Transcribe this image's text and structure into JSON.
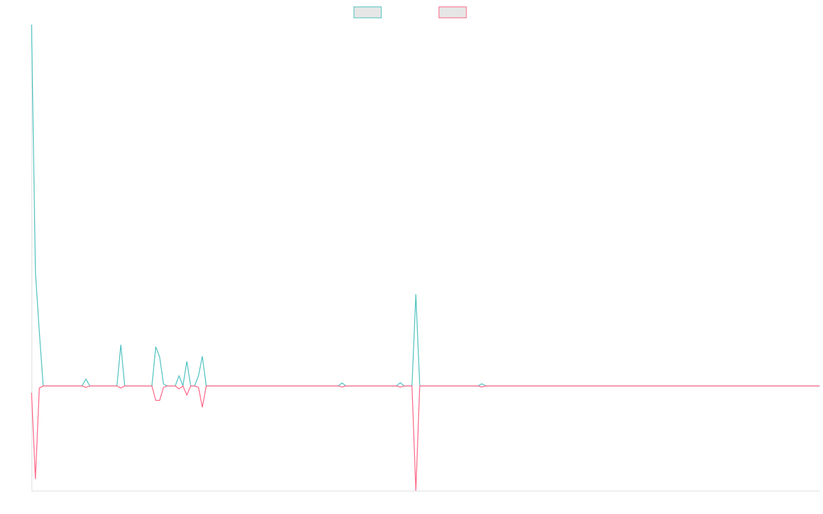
{
  "chart_data": {
    "type": "line",
    "legend": "top",
    "ylim": [
      -29,
      100
    ],
    "categories": [
      null,
      null,
      null,
      null,
      null,
      null,
      null,
      null,
      null,
      null,
      null,
      null,
      null,
      null,
      null,
      null,
      null,
      null,
      null,
      null,
      null,
      null,
      null,
      null,
      null,
      null,
      null,
      null,
      null,
      null,
      null,
      null,
      null,
      null,
      null,
      null,
      null,
      null,
      null,
      null,
      null,
      null,
      null,
      null,
      null,
      null,
      null,
      null,
      null,
      null,
      null,
      null,
      null,
      null,
      null,
      null,
      null,
      null,
      null,
      null,
      null,
      null,
      null,
      null,
      null,
      null,
      null,
      null,
      null,
      null,
      null,
      null,
      null,
      null,
      null,
      null,
      null,
      null,
      null,
      null,
      null,
      null,
      null,
      null,
      null,
      null,
      null,
      null,
      null,
      null,
      null,
      null,
      null,
      null,
      null,
      null,
      null,
      null,
      null,
      null,
      null,
      null,
      null,
      null,
      null,
      null,
      null,
      null,
      null,
      null,
      null,
      null,
      null,
      null,
      null,
      null,
      null,
      null,
      null,
      null,
      null,
      null,
      null,
      null,
      null,
      null,
      null,
      null,
      null,
      null,
      null,
      null,
      null,
      null,
      null,
      null,
      null,
      null,
      null,
      null,
      null,
      null,
      null,
      null,
      null,
      null,
      null,
      null,
      null,
      null,
      null,
      null,
      null,
      null,
      null,
      null,
      null,
      null,
      null,
      null,
      null,
      null,
      null,
      null,
      null,
      null,
      null,
      null,
      null,
      null,
      null,
      null,
      null,
      null,
      null,
      null,
      null,
      null,
      null,
      null,
      null,
      null,
      null,
      null,
      null,
      null,
      null,
      null,
      null,
      null,
      null,
      null,
      null,
      null,
      null,
      null,
      null,
      null,
      null,
      null,
      null,
      null,
      null,
      null
    ],
    "series": [
      {
        "color": "#4bc0c0",
        "values": [
          100,
          31.5,
          15,
          0,
          0,
          0,
          0,
          0,
          0,
          0,
          0,
          0,
          0,
          0,
          1.9,
          0,
          0,
          0,
          0,
          0,
          0,
          0,
          0,
          11.4,
          0,
          0,
          0,
          0,
          0,
          0,
          0,
          0,
          10.8,
          8,
          0.5,
          0,
          0,
          0,
          2.8,
          0,
          6.8,
          0,
          0,
          2.8,
          8.2,
          0,
          0,
          0,
          0,
          0,
          0,
          0,
          0,
          0,
          0,
          0,
          0,
          0,
          0,
          0,
          0,
          0,
          0,
          0,
          0,
          0,
          0,
          0,
          0,
          0,
          0,
          0,
          0,
          0,
          0,
          0,
          0,
          0,
          0,
          0,
          0.8,
          0,
          0,
          0,
          0,
          0,
          0,
          0,
          0,
          0,
          0,
          0,
          0,
          0,
          0,
          0.9,
          0,
          0,
          0,
          25.4,
          0,
          0,
          0,
          0,
          0,
          0,
          0,
          0,
          0,
          0,
          0,
          0,
          0,
          0,
          0,
          0,
          0.6,
          0,
          0,
          0,
          0,
          0,
          0,
          0,
          0,
          0,
          0,
          0,
          0,
          0,
          0,
          0,
          0,
          0,
          0,
          0,
          0,
          0,
          0,
          0,
          0,
          0,
          0,
          0,
          0,
          0,
          0,
          0,
          0,
          0,
          0,
          0,
          0,
          0,
          0,
          0,
          0,
          0,
          0,
          0,
          0,
          0,
          0,
          0,
          0,
          0,
          0,
          0,
          0,
          0,
          0,
          0,
          0,
          0,
          0,
          0,
          0,
          0,
          0,
          0,
          0,
          0,
          0,
          0,
          0,
          0,
          0,
          0,
          0,
          0,
          0,
          0,
          0,
          0,
          0,
          0,
          0,
          0,
          0,
          0,
          0,
          0,
          0,
          0
        ]
      },
      {
        "color": "#ff6384",
        "values": [
          -1.9,
          -25.8,
          -0.6,
          0,
          0,
          0,
          0,
          0,
          0,
          0,
          0,
          0,
          0,
          0,
          -0.4,
          0,
          0,
          0,
          0,
          0,
          0,
          0,
          0,
          -0.6,
          0,
          0,
          0,
          0,
          0,
          0,
          0,
          0,
          -4,
          -4,
          -0.4,
          0,
          0,
          0,
          -0.8,
          0,
          -2.5,
          0,
          0,
          -0.4,
          -5.9,
          0,
          0,
          0,
          0,
          0,
          0,
          0,
          0,
          0,
          0,
          0,
          0,
          0,
          0,
          0,
          0,
          0,
          0,
          0,
          0,
          0,
          0,
          0,
          0,
          0,
          0,
          0,
          0,
          0,
          0,
          0,
          0,
          0,
          0,
          0,
          -0.3,
          0,
          0,
          0,
          0,
          0,
          0,
          0,
          0,
          0,
          0,
          0,
          0,
          0,
          0,
          -0.3,
          0,
          0,
          0,
          -29,
          0,
          0,
          0,
          0,
          0,
          0,
          0,
          0,
          0,
          0,
          0,
          0,
          0,
          0,
          0,
          0,
          -0.3,
          0,
          0,
          0,
          0,
          0,
          0,
          0,
          0,
          0,
          0,
          0,
          0,
          0,
          0,
          0,
          0,
          0,
          0,
          0,
          0,
          0,
          0,
          0,
          0,
          0,
          0,
          0,
          0,
          0,
          0,
          0,
          0,
          0,
          0,
          0,
          0,
          0,
          0,
          0,
          0,
          0,
          0,
          0,
          0,
          0,
          0,
          0,
          0,
          0,
          0,
          0,
          0,
          0,
          0,
          0,
          0,
          0,
          0,
          0,
          0,
          0,
          0,
          0,
          0,
          0,
          0,
          0,
          0,
          0,
          0,
          0,
          0,
          0,
          0,
          0,
          0,
          0,
          0,
          0,
          0,
          0,
          0,
          0,
          0,
          0,
          0,
          0
        ]
      }
    ]
  }
}
